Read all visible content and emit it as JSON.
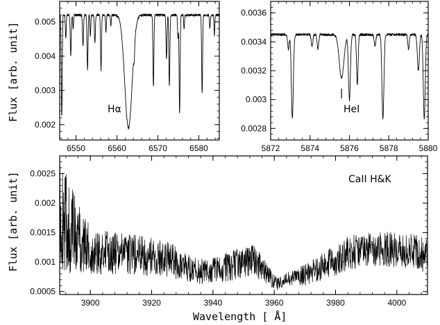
{
  "figure": {
    "ylabel_top": "Flux [arb. unit]",
    "ylabel_bottom": "Flux [arb. unit]",
    "xlabel_bottom": "Wavelength [ Å]"
  },
  "chart_data": [
    {
      "type": "line",
      "annotation": "Hα",
      "xlim": [
        6546,
        6585
      ],
      "ylim": [
        0.00155,
        0.0056
      ],
      "xticks": [
        6550,
        6560,
        6570,
        6580
      ],
      "yticks": [
        0.002,
        0.003,
        0.004,
        0.005
      ],
      "ytick_labels": [
        "0.002",
        "0.003",
        "0.004",
        "0.005"
      ],
      "continuum": 0.0052,
      "series": [
        {
          "lines": [
            {
              "x": 6546.5,
              "depth": 0.003,
              "width": 0.12
            },
            {
              "x": 6547.5,
              "depth": 0.0007,
              "width": 0.1
            },
            {
              "x": 6548.7,
              "depth": 0.0012,
              "width": 0.12
            },
            {
              "x": 6549.3,
              "depth": 0.0004,
              "width": 0.1
            },
            {
              "x": 6551.7,
              "depth": 0.0009,
              "width": 0.12
            },
            {
              "x": 6552.8,
              "depth": 0.0016,
              "width": 0.12
            },
            {
              "x": 6553.5,
              "depth": 0.0006,
              "width": 0.1
            },
            {
              "x": 6554.6,
              "depth": 0.0008,
              "width": 0.12
            },
            {
              "x": 6556.1,
              "depth": 0.0016,
              "width": 0.12
            },
            {
              "x": 6557.3,
              "depth": 0.0005,
              "width": 0.1
            },
            {
              "x": 6558.5,
              "depth": 0.0003,
              "width": 0.1
            },
            {
              "x": 6562.8,
              "depth": 0.0033,
              "width": 0.9
            },
            {
              "x": 6564.2,
              "depth": 0.0004,
              "width": 0.12
            },
            {
              "x": 6568.9,
              "depth": 0.0021,
              "width": 0.12
            },
            {
              "x": 6572.1,
              "depth": 0.0013,
              "width": 0.12
            },
            {
              "x": 6572.8,
              "depth": 0.0021,
              "width": 0.12
            },
            {
              "x": 6574.9,
              "depth": 0.0007,
              "width": 0.1
            },
            {
              "x": 6575.3,
              "depth": 0.0029,
              "width": 0.12
            },
            {
              "x": 6576.4,
              "depth": 0.0004,
              "width": 0.1
            },
            {
              "x": 6580.8,
              "depth": 0.0023,
              "width": 0.12
            },
            {
              "x": 6582.7,
              "depth": 0.0004,
              "width": 0.1
            },
            {
              "x": 6583.8,
              "depth": 0.0006,
              "width": 0.1
            }
          ]
        }
      ]
    },
    {
      "type": "line",
      "annotation": "HeI",
      "xlim": [
        5872,
        5880
      ],
      "ylim": [
        0.00272,
        0.00368
      ],
      "xticks": [
        5872,
        5874,
        5876,
        5878,
        5880
      ],
      "yticks": [
        0.0028,
        0.003,
        0.0032,
        0.0034,
        0.0036
      ],
      "ytick_labels": [
        "0.0028",
        "0.003",
        "0.0032",
        "0.0034",
        "0.0036"
      ],
      "continuum": 0.00345,
      "series": [
        {
          "lines": [
            {
              "x": 5872.9,
              "depth": 0.0001,
              "width": 0.04
            },
            {
              "x": 5873.1,
              "depth": 0.00058,
              "width": 0.05
            },
            {
              "x": 5874.1,
              "depth": 8e-05,
              "width": 0.04
            },
            {
              "x": 5874.4,
              "depth": 0.0001,
              "width": 0.04
            },
            {
              "x": 5875.6,
              "depth": 0.0003,
              "width": 0.12
            },
            {
              "x": 5876.0,
              "depth": 0.00045,
              "width": 0.05
            },
            {
              "x": 5876.4,
              "depth": 0.00035,
              "width": 0.04
            },
            {
              "x": 5877.3,
              "depth": 8e-05,
              "width": 0.04
            },
            {
              "x": 5877.7,
              "depth": 0.00058,
              "width": 0.05
            },
            {
              "x": 5879.0,
              "depth": 0.0001,
              "width": 0.04
            },
            {
              "x": 5879.5,
              "depth": 0.00025,
              "width": 0.05
            },
            {
              "x": 5879.8,
              "depth": 0.00058,
              "width": 0.05
            }
          ]
        }
      ]
    },
    {
      "type": "line",
      "annotation": "CaII H&K",
      "xlim": [
        3890,
        4010
      ],
      "ylim": [
        0.00045,
        0.0028
      ],
      "xticks": [
        3900,
        3920,
        3940,
        3960,
        3980,
        4000
      ],
      "yticks": [
        0.0005,
        0.001,
        0.0015,
        0.002,
        0.0025
      ],
      "ytick_labels": [
        "0.0005",
        "0.001",
        "0.0015",
        "0.002",
        "0.0025"
      ],
      "series": [
        {
          "envelope": [
            {
              "x": 3890,
              "mean": 0.0018,
              "amp": 0.0009
            },
            {
              "x": 3893,
              "mean": 0.0016,
              "amp": 0.0008
            },
            {
              "x": 3900,
              "mean": 0.00118,
              "amp": 0.0004
            },
            {
              "x": 3910,
              "mean": 0.00115,
              "amp": 0.00035
            },
            {
              "x": 3915,
              "mean": 0.00112,
              "amp": 0.00035
            },
            {
              "x": 3925,
              "mean": 0.00105,
              "amp": 0.0003
            },
            {
              "x": 3932,
              "mean": 0.0009,
              "amp": 0.00025
            },
            {
              "x": 3937,
              "mean": 0.00082,
              "amp": 0.00022
            },
            {
              "x": 3945,
              "mean": 0.00092,
              "amp": 0.00025
            },
            {
              "x": 3953,
              "mean": 0.00105,
              "amp": 0.00028
            },
            {
              "x": 3958,
              "mean": 0.00078,
              "amp": 0.00018
            },
            {
              "x": 3961,
              "mean": 0.00062,
              "amp": 0.0001
            },
            {
              "x": 3965,
              "mean": 0.00072,
              "amp": 0.00014
            },
            {
              "x": 3970,
              "mean": 0.00078,
              "amp": 0.00018
            },
            {
              "x": 3978,
              "mean": 0.00098,
              "amp": 0.00025
            },
            {
              "x": 3985,
              "mean": 0.00118,
              "amp": 0.0003
            },
            {
              "x": 3995,
              "mean": 0.00122,
              "amp": 0.0003
            },
            {
              "x": 4005,
              "mean": 0.00118,
              "amp": 0.0003
            },
            {
              "x": 4010,
              "mean": 0.0011,
              "amp": 0.0003
            }
          ]
        }
      ]
    }
  ]
}
